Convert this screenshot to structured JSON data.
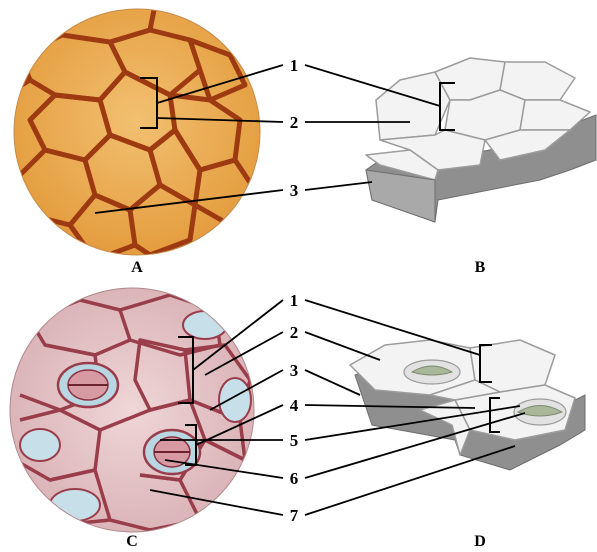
{
  "panels": [
    {
      "letter": "A"
    },
    {
      "letter": "B"
    },
    {
      "letter": "C"
    },
    {
      "letter": "D"
    }
  ],
  "labels_top": [
    "1",
    "2",
    "3"
  ],
  "labels_bottom": [
    "1",
    "2",
    "3",
    "4",
    "5",
    "6",
    "7"
  ],
  "colors": {
    "onion_bg": "#e9a847",
    "onion_wall": "#9e3a12",
    "leaf_bg": "#e6c3c6",
    "leaf_wall": "#9a3d4a",
    "guard_blue": "#b9d6e3",
    "cell_top": "#f3f3f3",
    "cell_side": "#8f8f8f",
    "stoma_green": "#aab89a"
  }
}
